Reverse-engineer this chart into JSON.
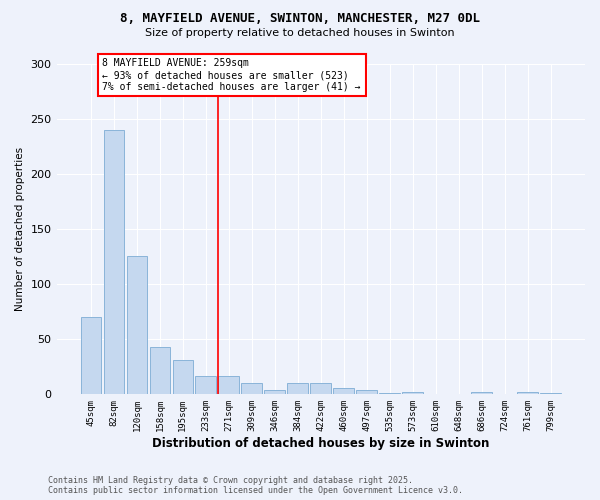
{
  "title1": "8, MAYFIELD AVENUE, SWINTON, MANCHESTER, M27 0DL",
  "title2": "Size of property relative to detached houses in Swinton",
  "xlabel": "Distribution of detached houses by size in Swinton",
  "ylabel": "Number of detached properties",
  "categories": [
    "45sqm",
    "82sqm",
    "120sqm",
    "158sqm",
    "195sqm",
    "233sqm",
    "271sqm",
    "309sqm",
    "346sqm",
    "384sqm",
    "422sqm",
    "460sqm",
    "497sqm",
    "535sqm",
    "573sqm",
    "610sqm",
    "648sqm",
    "686sqm",
    "724sqm",
    "761sqm",
    "799sqm"
  ],
  "values": [
    70,
    240,
    126,
    43,
    31,
    17,
    17,
    10,
    4,
    10,
    10,
    6,
    4,
    1,
    2,
    0,
    0,
    2,
    0,
    2,
    1
  ],
  "bar_color": "#c5d8ef",
  "bar_edge_color": "#8ab4d9",
  "background_color": "#eef2fb",
  "grid_color": "#ffffff",
  "vline_index": 6,
  "vline_color": "red",
  "annotation_text": "8 MAYFIELD AVENUE: 259sqm\n← 93% of detached houses are smaller (523)\n7% of semi-detached houses are larger (41) →",
  "annotation_box_color": "white",
  "annotation_box_edge": "red",
  "footer": "Contains HM Land Registry data © Crown copyright and database right 2025.\nContains public sector information licensed under the Open Government Licence v3.0.",
  "ylim": [
    0,
    300
  ],
  "yticks": [
    0,
    50,
    100,
    150,
    200,
    250,
    300
  ]
}
